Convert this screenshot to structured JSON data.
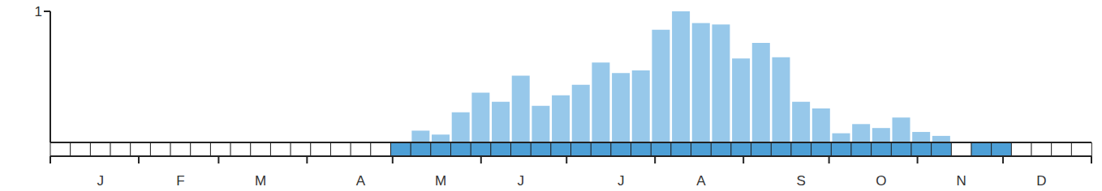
{
  "chart_data": {
    "type": "bar",
    "categories": [
      null,
      null,
      "J",
      null,
      null,
      null,
      "F",
      null,
      null,
      null,
      "M",
      null,
      null,
      null,
      null,
      "A",
      null,
      null,
      null,
      "M",
      null,
      null,
      null,
      "J",
      null,
      null,
      null,
      null,
      "J",
      null,
      null,
      null,
      "A",
      null,
      null,
      null,
      null,
      "S",
      null,
      null,
      null,
      "O",
      null,
      null,
      null,
      "N",
      null,
      null,
      null,
      "D",
      null,
      null
    ],
    "values": [
      0,
      0,
      0,
      0,
      0,
      0,
      0,
      0,
      0,
      0,
      0,
      0,
      0,
      0,
      0,
      0,
      0,
      0,
      0.09,
      0.06,
      0.23,
      0.38,
      0.31,
      0.51,
      0.28,
      0.36,
      0.44,
      0.61,
      0.53,
      0.55,
      0.86,
      1.0,
      0.91,
      0.9,
      0.64,
      0.76,
      0.65,
      0.31,
      0.26,
      0.07,
      0.14,
      0.11,
      0.19,
      0.08,
      0.05,
      0,
      0,
      0,
      0,
      0,
      0,
      0
    ],
    "presence": [
      0,
      0,
      0,
      0,
      0,
      0,
      0,
      0,
      0,
      0,
      0,
      0,
      0,
      0,
      0,
      0,
      0,
      1,
      1,
      1,
      1,
      1,
      1,
      1,
      1,
      1,
      1,
      1,
      1,
      1,
      1,
      1,
      1,
      1,
      1,
      1,
      1,
      1,
      1,
      1,
      1,
      1,
      1,
      1,
      1,
      0,
      1,
      1,
      0,
      0,
      0,
      0
    ],
    "color": "#97c8ea",
    "ylim": [
      0,
      1
    ],
    "yticks": [
      1
    ],
    "grid": false
  }
}
